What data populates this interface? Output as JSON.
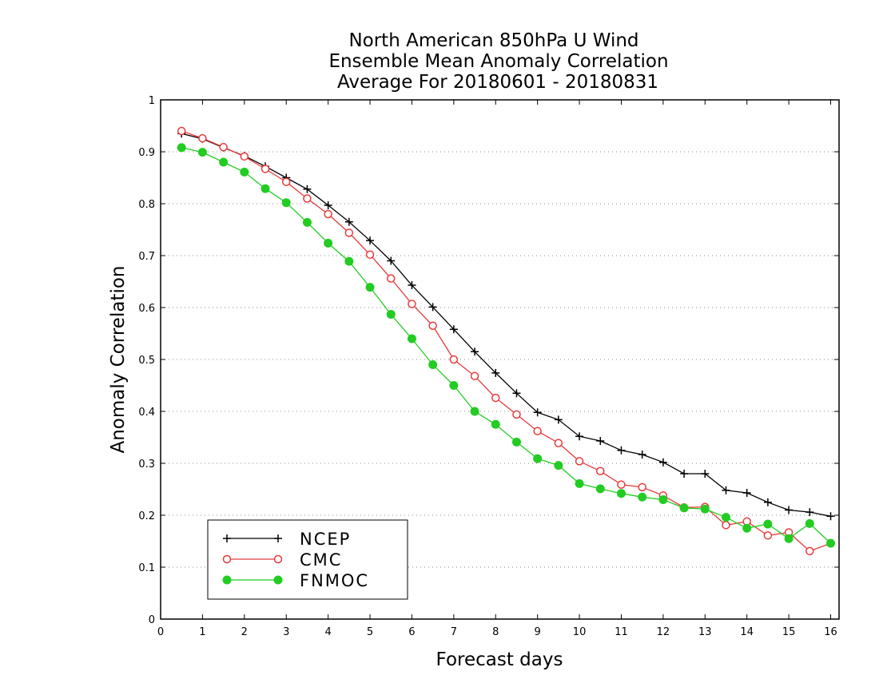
{
  "chart_data": {
    "type": "line",
    "title": [
      "North American 850hPa U Wind",
      "Ensemble Mean Anomaly Correlation",
      "Average For 20180601 - 20180831"
    ],
    "xlabel": "Forecast days",
    "ylabel": "Anomaly Correlation",
    "xlim": [
      0,
      16.2
    ],
    "ylim": [
      0,
      1
    ],
    "xticks": [
      "0",
      "1",
      "2",
      "3",
      "4",
      "5",
      "6",
      "7",
      "8",
      "9",
      "10",
      "11",
      "12",
      "13",
      "14",
      "15",
      "16"
    ],
    "yticks": [
      "0",
      "0.1",
      "0.2",
      "0.3",
      "0.4",
      "0.5",
      "0.6",
      "0.7",
      "0.8",
      "0.9",
      "1"
    ],
    "grid": "horizontal dotted",
    "legend_position": "bottom-left",
    "x": [
      0.5,
      1,
      1.5,
      2,
      2.5,
      3,
      3.5,
      4,
      4.5,
      5,
      5.5,
      6,
      6.5,
      7,
      7.5,
      8,
      8.5,
      9,
      9.5,
      10,
      10.5,
      11,
      11.5,
      12,
      12.5,
      13,
      13.5,
      14,
      14.5,
      15,
      15.5,
      16
    ],
    "series": [
      {
        "name": "NCEP",
        "color": "#000000",
        "marker": "plus",
        "values": [
          0.935,
          0.925,
          0.908,
          0.892,
          0.872,
          0.85,
          0.828,
          0.797,
          0.765,
          0.729,
          0.69,
          0.643,
          0.601,
          0.558,
          0.515,
          0.474,
          0.435,
          0.398,
          0.384,
          0.352,
          0.343,
          0.325,
          0.317,
          0.302,
          0.28,
          0.28,
          0.248,
          0.243,
          0.225,
          0.21,
          0.206,
          0.198
        ]
      },
      {
        "name": "CMC",
        "color": "#e83a3a",
        "marker": "open-circle",
        "values": [
          0.94,
          0.926,
          0.909,
          0.891,
          0.867,
          0.842,
          0.81,
          0.78,
          0.744,
          0.702,
          0.656,
          0.607,
          0.565,
          0.5,
          0.468,
          0.426,
          0.394,
          0.362,
          0.339,
          0.304,
          0.285,
          0.259,
          0.254,
          0.238,
          0.215,
          0.216,
          0.181,
          0.188,
          0.161,
          0.167,
          0.131,
          0.146
        ]
      },
      {
        "name": "FNMOC",
        "color": "#22cc22",
        "marker": "filled-circle",
        "values": [
          0.908,
          0.899,
          0.88,
          0.861,
          0.829,
          0.802,
          0.764,
          0.724,
          0.689,
          0.639,
          0.587,
          0.54,
          0.49,
          0.45,
          0.4,
          0.375,
          0.341,
          0.309,
          0.296,
          0.261,
          0.251,
          0.242,
          0.235,
          0.23,
          0.214,
          0.212,
          0.196,
          0.175,
          0.183,
          0.155,
          0.184,
          0.146
        ]
      }
    ]
  }
}
